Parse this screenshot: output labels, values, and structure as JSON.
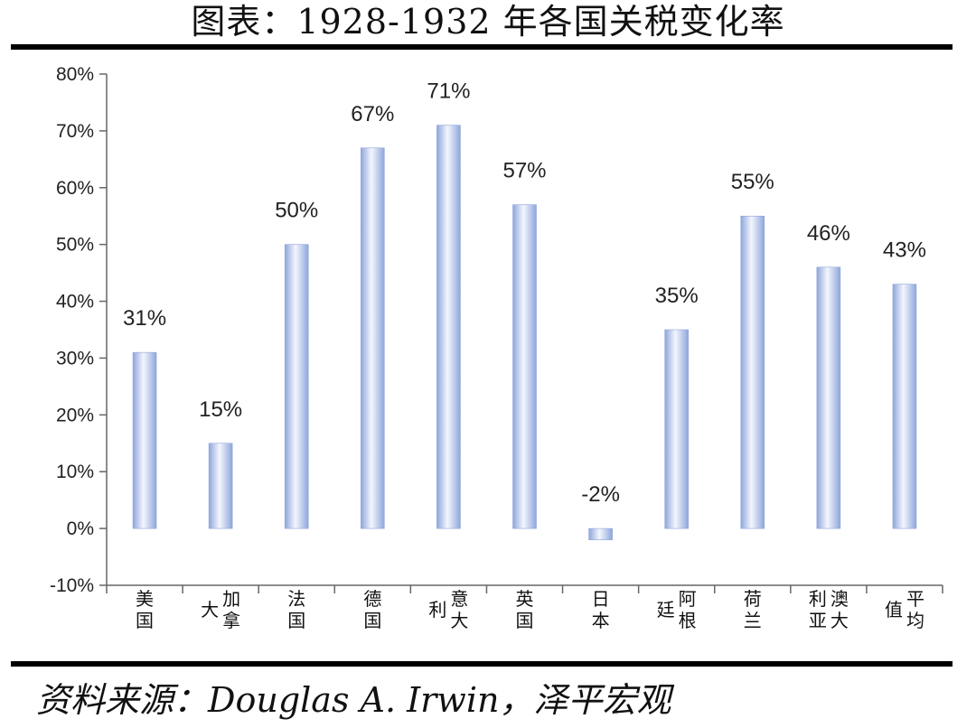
{
  "title": "图表：1928-1932 年各国关税变化率",
  "source": "资料来源：Douglas A. Irwin，泽平宏观",
  "chart_data": {
    "type": "bar",
    "categories": [
      "美国",
      "加拿大",
      "法国",
      "德国",
      "意大利",
      "英国",
      "日本",
      "阿根廷",
      "荷兰",
      "澳大利亚",
      "平均值"
    ],
    "category_label_lines": [
      [
        "美国"
      ],
      [
        "大",
        "加拿"
      ],
      [
        "法国"
      ],
      [
        "德国"
      ],
      [
        "利",
        "意大"
      ],
      [
        "英国"
      ],
      [
        "日本"
      ],
      [
        "廷",
        "阿根"
      ],
      [
        "荷兰"
      ],
      [
        "利亚",
        "澳大"
      ],
      [
        "值",
        "平均"
      ]
    ],
    "values": [
      31,
      15,
      50,
      67,
      71,
      57,
      -2,
      35,
      55,
      46,
      43
    ],
    "data_labels": [
      "31%",
      "15%",
      "50%",
      "67%",
      "71%",
      "57%",
      "-2%",
      "35%",
      "55%",
      "46%",
      "43%"
    ],
    "ylim": [
      -10,
      80
    ],
    "yticks": [
      -10,
      0,
      10,
      20,
      30,
      40,
      50,
      60,
      70,
      80
    ],
    "ytick_labels": [
      "-10%",
      "0%",
      "10%",
      "20%",
      "30%",
      "40%",
      "50%",
      "60%",
      "70%",
      "80%"
    ],
    "xlabel": "",
    "ylabel": "",
    "grid": false,
    "legend": "none",
    "bar_color": "#9fb4e4"
  }
}
